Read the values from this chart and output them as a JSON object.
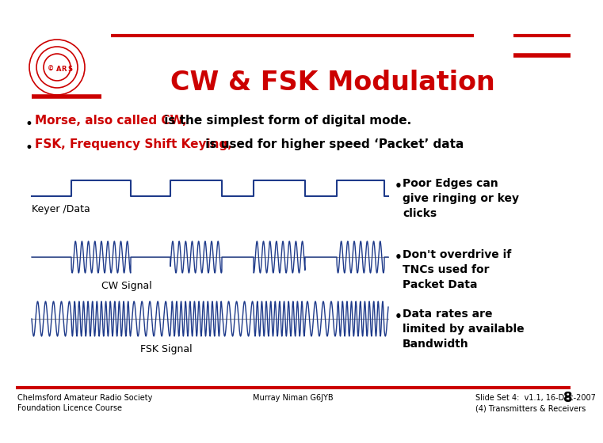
{
  "title": "CW & FSK Modulation",
  "bg_color": "#FFFFFF",
  "red": "#CC0000",
  "blue": "#1E3A8A",
  "black": "#000000",
  "bullet1_red": "Morse, also called CW,",
  "bullet1_black": " is the simplest form of digital mode.",
  "bullet2_red": "FSK, Frequency Shift Keying,",
  "bullet2_black": " is used for higher speed ‘Packet’ data",
  "keyer_label": "Keyer /Data",
  "cw_label": "CW Signal",
  "fsk_label": "FSK Signal",
  "rb1": "Poor Edges can\ngive ringing or key\nclicks",
  "rb2": "Don't overdrive if\nTNCs used for\nPacket Data",
  "rb3": "Data rates are\nlimited by available\nBandwidth",
  "footer_left1": "Chelmsford Amateur Radio Society",
  "footer_left2": "Foundation Licence Course",
  "footer_mid": "Murray Niman G6JYB",
  "footer_right1": "Slide Set 4:  v1.1, 16-Dec-2007",
  "footer_right2": "(4) Transmitters & Receivers",
  "footer_num": "8"
}
